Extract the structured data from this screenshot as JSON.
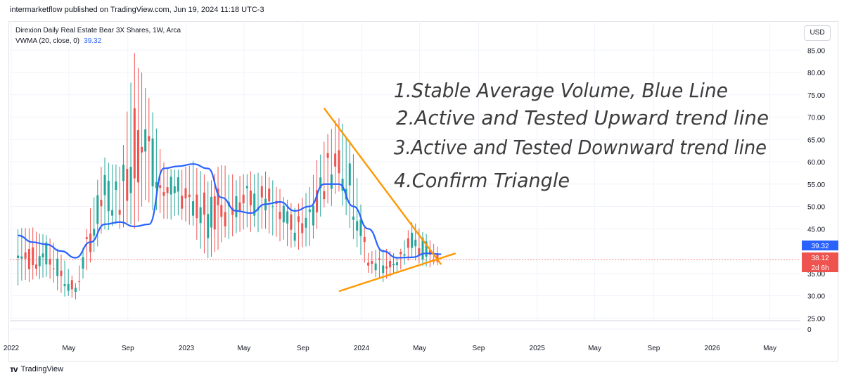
{
  "header": {
    "published_line": "intermarketflow published on TradingView.com, Jun 19, 2024 11:18 UTC-3"
  },
  "legend": {
    "symbol_line": "Direxion Daily Real Estate Bear 3X Shares, 1W, Arca",
    "indicator_label": "VWMA (20, close, 0)",
    "indicator_value": "39.32"
  },
  "currency_button": "USD",
  "footer": {
    "brand": "TradingView",
    "logo_icon": "tradingview-logo-icon"
  },
  "colors": {
    "up": "#26a69a",
    "down": "#ef5350",
    "vwma": "#2962ff",
    "trendline": "#ff9800",
    "price_line": "#ef5350",
    "grid": "#f0f3fa"
  },
  "chart_data": {
    "type": "line",
    "title": "Direxion Daily Real Estate Bear 3X Shares, 1W, Arca",
    "ylim": [
      0,
      85
    ],
    "y_ticks": [
      "85.00",
      "80.00",
      "75.00",
      "70.00",
      "65.00",
      "60.00",
      "55.00",
      "50.00",
      "45.00",
      "35.00",
      "30.00",
      "25.00",
      "0"
    ],
    "x_ticks": [
      "2022",
      "May",
      "Sep",
      "2023",
      "May",
      "Sep",
      "2024",
      "May",
      "Sep",
      "2025",
      "May",
      "Sep",
      "2026",
      "May"
    ],
    "price_badges": [
      {
        "text": "39.32",
        "color": "#2962ff"
      },
      {
        "text": "38.12",
        "color": "#ef5350"
      },
      {
        "text": "2d 6h",
        "color": "#ef5350"
      }
    ],
    "last_price": 38.12,
    "series": [
      {
        "name": "VWMA (20, close, 0)",
        "x": [
          "2022-01",
          "2022-02",
          "2022-03",
          "2022-04",
          "2022-05",
          "2022-06",
          "2022-07",
          "2022-08",
          "2022-09",
          "2022-10",
          "2022-11",
          "2022-12",
          "2023-01",
          "2023-02",
          "2023-03",
          "2023-04",
          "2023-05",
          "2023-06",
          "2023-07",
          "2023-08",
          "2023-09",
          "2023-10",
          "2023-11",
          "2023-12",
          "2024-01",
          "2024-02",
          "2024-03",
          "2024-04",
          "2024-05",
          "2024-06"
        ],
        "values": [
          43.5,
          42,
          41.5,
          40,
          38.5,
          42,
          46,
          46.5,
          45.5,
          46,
          58.5,
          59,
          59.5,
          58.5,
          52,
          49,
          48.5,
          50.5,
          51,
          49,
          50,
          55,
          55,
          50,
          45,
          40,
          38.5,
          38.6,
          39.5,
          39.3
        ]
      },
      {
        "name": "Weekly candles (high/low)",
        "x": [
          "2022-01",
          "2022-02",
          "2022-03",
          "2022-04",
          "2022-05",
          "2022-06",
          "2022-07",
          "2022-08",
          "2022-09",
          "2022-10",
          "2022-11",
          "2022-12",
          "2023-01",
          "2023-02",
          "2023-03",
          "2023-04",
          "2023-05",
          "2023-06",
          "2023-07",
          "2023-08",
          "2023-09",
          "2023-10",
          "2023-11",
          "2023-12",
          "2024-01",
          "2024-02",
          "2024-03",
          "2024-04",
          "2024-05",
          "2024-06"
        ],
        "high": [
          45,
          46,
          44,
          40,
          33,
          50,
          62,
          59,
          85,
          75,
          60,
          59,
          61,
          56,
          60,
          57,
          58,
          58,
          54,
          50,
          55,
          66,
          71,
          62,
          40,
          41,
          39,
          47,
          44,
          40
        ],
        "low": [
          32,
          33,
          34,
          30,
          29,
          37,
          44,
          45,
          45,
          50,
          46,
          47,
          44,
          37,
          41,
          44,
          44,
          44,
          42,
          40,
          41,
          48,
          52,
          42,
          35,
          33,
          35,
          38,
          36,
          37
        ]
      }
    ],
    "trendlines": [
      {
        "name": "Downward trend line",
        "x": [
          "2023-10",
          "2024-06"
        ],
        "values": [
          72,
          37
        ]
      },
      {
        "name": "Upward trend line",
        "x": [
          "2023-11",
          "2024-07"
        ],
        "values": [
          31,
          39.5
        ]
      }
    ],
    "annotations": [
      "1.Stable Average Volume, Blue Line",
      "2.Active and Tested Upward trend line",
      "3.Active and Tested Downward trend line",
      "4.Confirm Triangle"
    ]
  }
}
